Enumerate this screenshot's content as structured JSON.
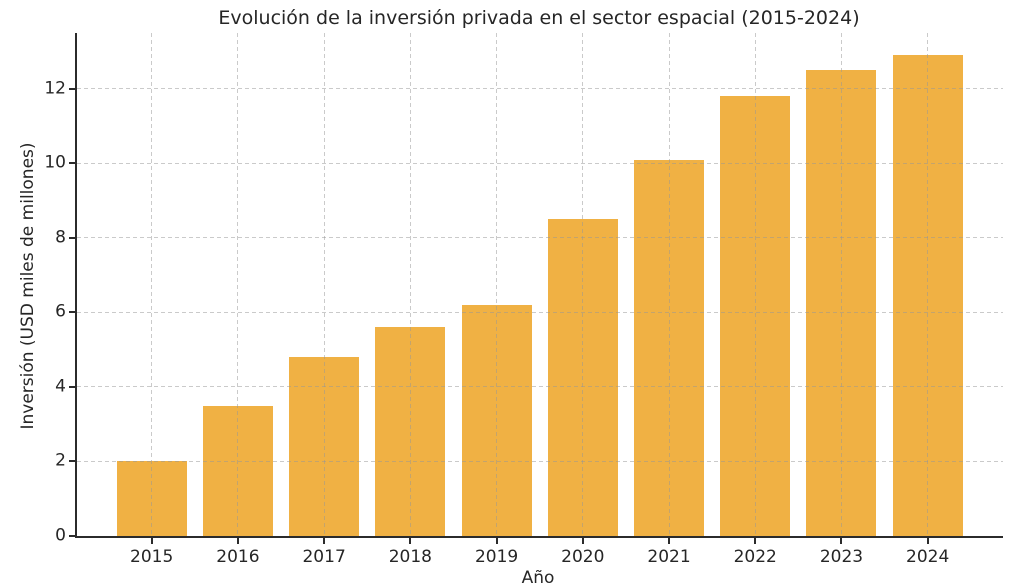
{
  "figure": {
    "background": "#ffffff"
  },
  "chart_data": {
    "type": "bar",
    "title": "Evolución de la inversión privada en el sector espacial (2015-2024)",
    "xlabel": "Año",
    "ylabel": "Inversión (USD miles de millones)",
    "categories": [
      "2015",
      "2016",
      "2017",
      "2018",
      "2019",
      "2020",
      "2021",
      "2022",
      "2023",
      "2024"
    ],
    "values": [
      2.0,
      3.5,
      4.8,
      5.6,
      6.2,
      8.5,
      10.1,
      11.8,
      12.5,
      12.9
    ],
    "yticks": [
      0,
      2,
      4,
      6,
      8,
      10,
      12
    ],
    "ylim": [
      0,
      13.5
    ],
    "grid": true,
    "grid_style": "dashed",
    "legend": "none",
    "bar_color": "#F0B144",
    "grid_color": "#c9c9c9",
    "axis_color": "#2b2b2b",
    "text_color": "#262626"
  }
}
